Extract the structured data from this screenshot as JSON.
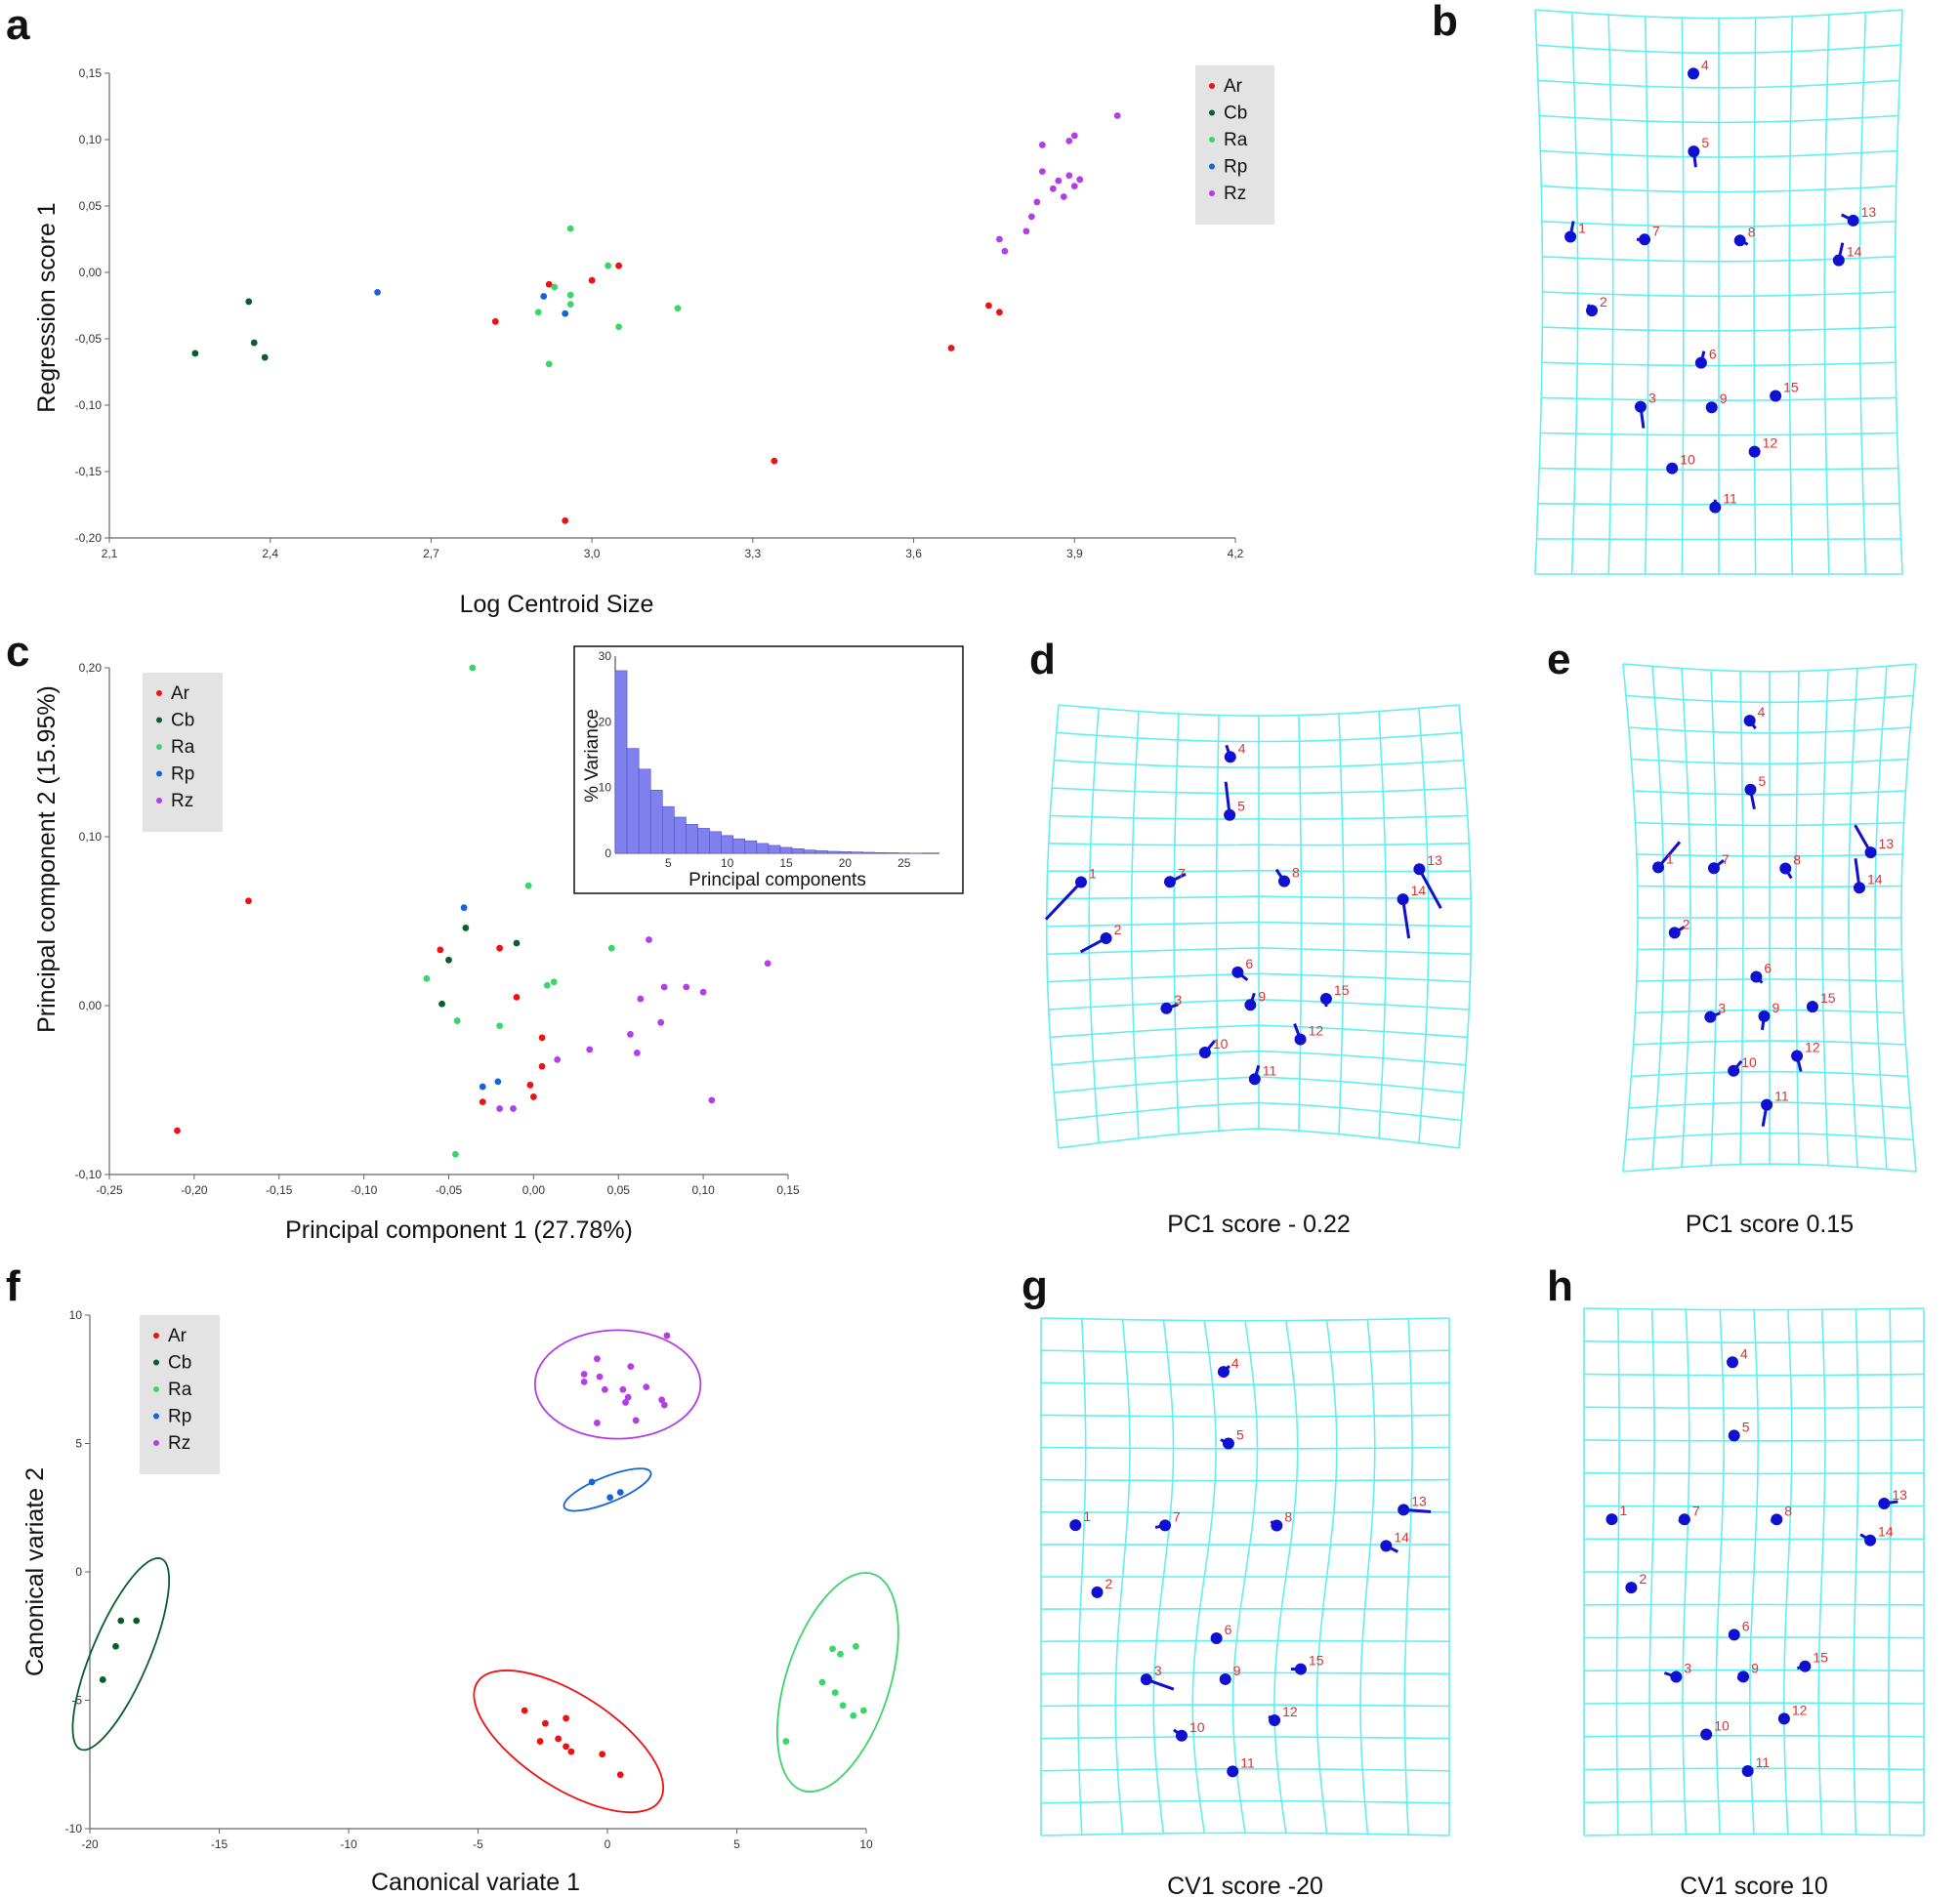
{
  "colors": {
    "Ar": "#ee1111",
    "Cb": "#0a5e2a",
    "Ra": "#3ad66a",
    "Rp": "#1565d8",
    "Rz": "#b23ee6",
    "grid": "#62efef",
    "landmark": "#1010d0",
    "landmark_label": "#e03030",
    "inset_bar": "#8080ee"
  },
  "legend": [
    "Ar",
    "Cb",
    "Ra",
    "Rp",
    "Rz"
  ],
  "panels": {
    "a": {
      "label": "a",
      "xlabel": "Log Centroid Size",
      "ylabel": "Regression score 1",
      "xticks": [
        "2,1",
        "2,4",
        "2,7",
        "3,0",
        "3,3",
        "3,6",
        "3,9",
        "4,2"
      ],
      "yticks": [
        "0,15",
        "0,10",
        "0,05",
        "0,00",
        "-0,05",
        "-0,10",
        "-0,15",
        "-0,20"
      ]
    },
    "b": {
      "label": "b"
    },
    "c": {
      "label": "c",
      "xlabel": "Principal component 1 (27.78%)",
      "ylabel": "Principal component 2 (15.95%)",
      "xticks": [
        "-0,25",
        "-0,20",
        "-0,15",
        "-0,10",
        "-0,05",
        "0,00",
        "0,05",
        "0,10",
        "0,15"
      ],
      "yticks": [
        "0,20",
        "0,10",
        "0,00",
        "-0,10"
      ],
      "inset": {
        "xlabel": "Principal components",
        "ylabel": "% Variance",
        "xticks": [
          "5",
          "10",
          "15",
          "20",
          "25"
        ],
        "yticks": [
          "30",
          "20",
          "10",
          "0"
        ]
      }
    },
    "d": {
      "label": "d",
      "caption": "PC1 score - 0.22"
    },
    "e": {
      "label": "e",
      "caption": "PC1 score 0.15"
    },
    "f": {
      "label": "f",
      "xlabel": "Canonical variate 1",
      "ylabel": "Canonical variate 2",
      "xticks": [
        "-20",
        "-15",
        "-10",
        "-5",
        "0",
        "5",
        "10"
      ],
      "yticks": [
        "10",
        "5",
        "0",
        "-5",
        "-10"
      ]
    },
    "g": {
      "label": "g",
      "caption": "CV1 score -20"
    },
    "h": {
      "label": "h",
      "caption": "CV1 score 10"
    }
  },
  "chart_data": [
    {
      "id": "a",
      "type": "scatter",
      "title": "",
      "xlabel": "Log Centroid Size",
      "ylabel": "Regression score 1",
      "xlim": [
        2.1,
        4.2
      ],
      "ylim": [
        -0.2,
        0.15
      ],
      "series": [
        {
          "name": "Ar",
          "points": [
            [
              2.82,
              -0.037
            ],
            [
              2.92,
              -0.009
            ],
            [
              3.0,
              -0.006
            ],
            [
              3.05,
              0.005
            ],
            [
              2.95,
              -0.187
            ],
            [
              3.34,
              -0.142
            ],
            [
              3.67,
              -0.057
            ],
            [
              3.74,
              -0.025
            ],
            [
              3.76,
              -0.03
            ]
          ]
        },
        {
          "name": "Cb",
          "points": [
            [
              2.26,
              -0.061
            ],
            [
              2.36,
              -0.022
            ],
            [
              2.37,
              -0.053
            ],
            [
              2.39,
              -0.064
            ]
          ]
        },
        {
          "name": "Ra",
          "points": [
            [
              2.96,
              0.033
            ],
            [
              3.03,
              0.005
            ],
            [
              2.93,
              -0.011
            ],
            [
              2.96,
              -0.017
            ],
            [
              2.96,
              -0.024
            ],
            [
              2.9,
              -0.03
            ],
            [
              3.05,
              -0.041
            ],
            [
              3.16,
              -0.027
            ],
            [
              2.92,
              -0.069
            ]
          ]
        },
        {
          "name": "Rp",
          "points": [
            [
              2.6,
              -0.015
            ],
            [
              2.91,
              -0.018
            ],
            [
              2.95,
              -0.031
            ]
          ]
        },
        {
          "name": "Rz",
          "points": [
            [
              3.76,
              0.025
            ],
            [
              3.77,
              0.016
            ],
            [
              3.81,
              0.031
            ],
            [
              3.82,
              0.042
            ],
            [
              3.83,
              0.053
            ],
            [
              3.84,
              0.076
            ],
            [
              3.84,
              0.096
            ],
            [
              3.86,
              0.063
            ],
            [
              3.87,
              0.069
            ],
            [
              3.88,
              0.057
            ],
            [
              3.89,
              0.073
            ],
            [
              3.9,
              0.065
            ],
            [
              3.91,
              0.07
            ],
            [
              3.89,
              0.099
            ],
            [
              3.9,
              0.103
            ],
            [
              3.98,
              0.118
            ]
          ]
        }
      ]
    },
    {
      "id": "c",
      "type": "scatter",
      "title": "",
      "xlabel": "Principal component 1 (27.78%)",
      "ylabel": "Principal component 2 (15.95%)",
      "xlim": [
        -0.25,
        0.15
      ],
      "ylim": [
        -0.1,
        0.2
      ],
      "series": [
        {
          "name": "Ar",
          "points": [
            [
              -0.168,
              0.062
            ],
            [
              -0.21,
              -0.074
            ],
            [
              -0.055,
              0.033
            ],
            [
              -0.02,
              0.034
            ],
            [
              -0.01,
              0.005
            ],
            [
              0.005,
              -0.019
            ],
            [
              0.005,
              -0.036
            ],
            [
              -0.03,
              -0.057
            ],
            [
              -0.002,
              -0.047
            ],
            [
              0.0,
              -0.054
            ]
          ]
        },
        {
          "name": "Cb",
          "points": [
            [
              -0.04,
              0.046
            ],
            [
              -0.01,
              0.037
            ],
            [
              -0.05,
              0.027
            ],
            [
              -0.054,
              0.001
            ]
          ]
        },
        {
          "name": "Ra",
          "points": [
            [
              -0.036,
              0.2
            ],
            [
              -0.003,
              0.071
            ],
            [
              0.046,
              0.034
            ],
            [
              -0.063,
              0.016
            ],
            [
              0.008,
              0.012
            ],
            [
              0.012,
              0.014
            ],
            [
              -0.02,
              -0.012
            ],
            [
              -0.045,
              -0.009
            ],
            [
              -0.046,
              -0.088
            ]
          ]
        },
        {
          "name": "Rp",
          "points": [
            [
              -0.041,
              0.058
            ],
            [
              -0.03,
              -0.048
            ],
            [
              -0.021,
              -0.045
            ]
          ]
        },
        {
          "name": "Rz",
          "points": [
            [
              0.068,
              0.039
            ],
            [
              0.138,
              0.025
            ],
            [
              0.09,
              0.011
            ],
            [
              0.077,
              0.011
            ],
            [
              0.063,
              0.004
            ],
            [
              0.1,
              0.008
            ],
            [
              0.075,
              -0.01
            ],
            [
              0.057,
              -0.017
            ],
            [
              0.033,
              -0.026
            ],
            [
              0.061,
              -0.028
            ],
            [
              0.014,
              -0.032
            ],
            [
              0.105,
              -0.056
            ],
            [
              -0.012,
              -0.061
            ],
            [
              -0.02,
              -0.061
            ]
          ]
        }
      ]
    },
    {
      "id": "c-inset",
      "type": "bar",
      "title": "",
      "xlabel": "Principal components",
      "ylabel": "% Variance",
      "ylim": [
        0,
        30
      ],
      "categories": [
        "1",
        "2",
        "3",
        "4",
        "5",
        "6",
        "7",
        "8",
        "9",
        "10",
        "11",
        "12",
        "13",
        "14",
        "15",
        "16",
        "17",
        "18",
        "19",
        "20",
        "21",
        "22",
        "23",
        "24",
        "25",
        "26"
      ],
      "values": [
        27.78,
        15.95,
        12.8,
        9.6,
        7.1,
        5.5,
        4.4,
        3.8,
        3.3,
        2.7,
        2.2,
        1.9,
        1.5,
        1.2,
        0.9,
        0.7,
        0.5,
        0.4,
        0.3,
        0.25,
        0.2,
        0.15,
        0.1,
        0.08,
        0.05,
        0.03
      ]
    },
    {
      "id": "f",
      "type": "scatter",
      "title": "",
      "xlabel": "Canonical variate 1",
      "ylabel": "Canonical variate 2",
      "xlim": [
        -20,
        10
      ],
      "ylim": [
        -10,
        10
      ],
      "series": [
        {
          "name": "Ar",
          "points": [
            [
              -3.2,
              -5.4
            ],
            [
              -1.6,
              -5.7
            ],
            [
              -2.4,
              -5.9
            ],
            [
              -1.9,
              -6.5
            ],
            [
              -1.6,
              -6.8
            ],
            [
              -1.4,
              -7.0
            ],
            [
              -0.2,
              -7.1
            ],
            [
              -2.6,
              -6.6
            ],
            [
              0.5,
              -7.9
            ]
          ]
        },
        {
          "name": "Cb",
          "points": [
            [
              -18.8,
              -1.9
            ],
            [
              -18.2,
              -1.9
            ],
            [
              -19.0,
              -2.9
            ],
            [
              -19.5,
              -4.2
            ]
          ]
        },
        {
          "name": "Ra",
          "points": [
            [
              8.7,
              -3.0
            ],
            [
              9.0,
              -3.2
            ],
            [
              9.6,
              -2.9
            ],
            [
              8.3,
              -4.3
            ],
            [
              8.8,
              -4.7
            ],
            [
              9.1,
              -5.2
            ],
            [
              9.5,
              -5.6
            ],
            [
              9.9,
              -5.4
            ],
            [
              6.9,
              -6.6
            ]
          ]
        },
        {
          "name": "Rp",
          "points": [
            [
              -0.6,
              3.5
            ],
            [
              0.1,
              2.9
            ],
            [
              0.5,
              3.1
            ]
          ]
        },
        {
          "name": "Rz",
          "points": [
            [
              2.3,
              9.2
            ],
            [
              -0.4,
              8.3
            ],
            [
              0.9,
              8.0
            ],
            [
              -0.9,
              7.7
            ],
            [
              -0.3,
              7.6
            ],
            [
              -0.9,
              7.4
            ],
            [
              -0.1,
              7.1
            ],
            [
              0.6,
              7.1
            ],
            [
              1.5,
              7.2
            ],
            [
              0.8,
              6.8
            ],
            [
              2.1,
              6.7
            ],
            [
              2.2,
              6.5
            ],
            [
              0.7,
              6.6
            ],
            [
              -0.4,
              5.8
            ],
            [
              1.1,
              5.9
            ]
          ]
        }
      ],
      "ellipses": [
        {
          "name": "Rz",
          "center": [
            0.4,
            7.3
          ],
          "rx": 3.2,
          "ry": 2.1,
          "angle": 0
        },
        {
          "name": "Rp",
          "center": [
            0.0,
            3.2
          ],
          "rx": 1.8,
          "ry": 0.5,
          "angle": -22
        },
        {
          "name": "Cb",
          "center": [
            -18.8,
            -3.2
          ],
          "rx": 4.0,
          "ry": 1.1,
          "angle": -67
        },
        {
          "name": "Ra",
          "center": [
            8.9,
            -4.3
          ],
          "rx": 4.4,
          "ry": 2.0,
          "angle": -72
        },
        {
          "name": "Ar",
          "center": [
            -1.5,
            -6.6
          ],
          "rx": 4.2,
          "ry": 1.8,
          "angle": 33
        }
      ]
    }
  ],
  "landmark_ids": [
    "1",
    "2",
    "3",
    "4",
    "5",
    "6",
    "7",
    "8",
    "9",
    "10",
    "11",
    "12",
    "13",
    "14",
    "15"
  ]
}
